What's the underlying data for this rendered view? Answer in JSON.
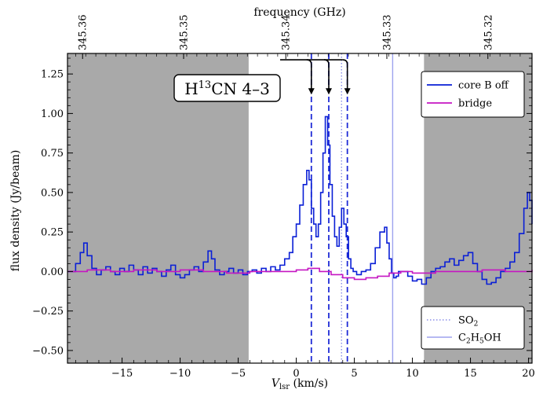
{
  "chart_data": {
    "type": "line",
    "xlabel": "V",
    "xlabel_sub": "lsr",
    "xlabel_unit": " (km/s)",
    "ylabel": "flux density (Jy/beam)",
    "top_axis_label": "frequency (GHz)",
    "xlim": [
      -19.7,
      20.3
    ],
    "ylim": [
      -0.58,
      1.38
    ],
    "x_ticks": [
      -15,
      -10,
      -5,
      0,
      5,
      10,
      15,
      20
    ],
    "x_tick_labels": [
      "−15",
      "−10",
      "−5",
      "0",
      "5",
      "10",
      "15",
      "20"
    ],
    "y_ticks": [
      -0.5,
      -0.25,
      0.0,
      0.25,
      0.5,
      0.75,
      1.0,
      1.25
    ],
    "y_tick_labels": [
      "−0.50",
      "−0.25",
      "0.00",
      "0.25",
      "0.50",
      "0.75",
      "1.00",
      "1.25"
    ],
    "top_ticks": [
      {
        "v": -18.4,
        "label": "345.36"
      },
      {
        "v": -9.7,
        "label": "345.35"
      },
      {
        "v": -0.9,
        "label": "345.34"
      },
      {
        "v": 7.8,
        "label": "345.33"
      },
      {
        "v": 16.5,
        "label": "345.32"
      }
    ],
    "shaded_regions": [
      [
        -19.7,
        -4.1
      ],
      [
        11.0,
        20.3
      ]
    ],
    "series": [
      {
        "name": "core B off",
        "color": "#0a1fd6",
        "x": [
          -19.7,
          -19.0,
          -18.6,
          -18.3,
          -18.0,
          -17.6,
          -17.2,
          -16.8,
          -16.4,
          -16.0,
          -15.6,
          -15.2,
          -14.8,
          -14.4,
          -14.0,
          -13.6,
          -13.2,
          -12.8,
          -12.4,
          -12.0,
          -11.6,
          -11.2,
          -10.8,
          -10.4,
          -10.0,
          -9.6,
          -9.2,
          -8.8,
          -8.4,
          -8.0,
          -7.6,
          -7.3,
          -7.0,
          -6.6,
          -6.2,
          -5.8,
          -5.4,
          -5.0,
          -4.6,
          -4.2,
          -3.8,
          -3.4,
          -3.0,
          -2.6,
          -2.2,
          -1.8,
          -1.4,
          -1.0,
          -0.6,
          -0.3,
          0.0,
          0.3,
          0.6,
          0.9,
          1.1,
          1.3,
          1.5,
          1.7,
          1.9,
          2.1,
          2.3,
          2.5,
          2.7,
          2.9,
          3.1,
          3.3,
          3.5,
          3.7,
          3.9,
          4.1,
          4.3,
          4.5,
          4.7,
          4.9,
          5.2,
          5.6,
          6.0,
          6.4,
          6.8,
          7.2,
          7.6,
          7.8,
          8.0,
          8.2,
          8.4,
          8.6,
          8.8,
          9.2,
          9.6,
          10.0,
          10.4,
          10.8,
          11.2,
          11.6,
          12.0,
          12.4,
          12.8,
          13.2,
          13.6,
          14.0,
          14.4,
          14.8,
          15.2,
          15.6,
          16.0,
          16.4,
          16.8,
          17.2,
          17.6,
          18.0,
          18.4,
          18.8,
          19.2,
          19.6,
          19.9,
          20.1,
          20.3
        ],
        "y": [
          0.0,
          0.05,
          0.12,
          0.18,
          0.1,
          0.02,
          -0.02,
          0.01,
          0.03,
          0.0,
          -0.02,
          0.02,
          0.0,
          0.04,
          0.01,
          -0.02,
          0.03,
          -0.01,
          0.02,
          0.0,
          -0.03,
          0.01,
          0.04,
          -0.02,
          -0.04,
          -0.02,
          0.01,
          0.03,
          0.0,
          0.06,
          0.13,
          0.08,
          0.01,
          -0.02,
          0.0,
          0.02,
          -0.01,
          0.01,
          -0.02,
          0.0,
          0.01,
          -0.01,
          0.02,
          0.0,
          0.03,
          0.01,
          0.04,
          0.08,
          0.12,
          0.22,
          0.3,
          0.42,
          0.55,
          0.64,
          0.58,
          0.4,
          0.3,
          0.22,
          0.3,
          0.5,
          0.75,
          0.98,
          0.8,
          0.55,
          0.35,
          0.22,
          0.16,
          0.28,
          0.4,
          0.3,
          0.22,
          0.08,
          0.02,
          0.0,
          -0.02,
          0.0,
          0.01,
          0.05,
          0.15,
          0.25,
          0.28,
          0.18,
          0.08,
          -0.01,
          -0.04,
          -0.03,
          0.0,
          0.0,
          -0.03,
          -0.06,
          -0.05,
          -0.08,
          -0.04,
          0.0,
          0.02,
          0.03,
          0.06,
          0.08,
          0.04,
          0.07,
          0.1,
          0.12,
          0.05,
          0.0,
          -0.05,
          -0.08,
          -0.07,
          -0.04,
          0.0,
          0.02,
          0.06,
          0.12,
          0.24,
          0.4,
          0.5,
          0.45,
          0.3
        ]
      },
      {
        "name": "bridge",
        "color": "#c516c2",
        "x": [
          -19.7,
          -18.0,
          -16.0,
          -14.0,
          -12.0,
          -10.0,
          -8.0,
          -6.0,
          -4.0,
          -2.0,
          0.0,
          1.0,
          2.0,
          3.0,
          4.0,
          5.0,
          6.0,
          7.0,
          8.0,
          9.0,
          10.0,
          12.0,
          14.0,
          16.0,
          18.0,
          20.3
        ],
        "y": [
          0.0,
          0.01,
          0.0,
          0.01,
          0.0,
          0.01,
          0.0,
          -0.01,
          0.0,
          0.0,
          0.01,
          0.02,
          0.0,
          -0.02,
          -0.04,
          -0.05,
          -0.04,
          -0.03,
          -0.01,
          0.0,
          -0.01,
          0.0,
          0.0,
          0.01,
          0.0,
          0.01
        ]
      }
    ],
    "vlines": [
      {
        "x": 1.3,
        "style": "dashed",
        "color": "#1f2bd6",
        "name": "H13CN 4-3"
      },
      {
        "x": 2.8,
        "style": "dashed",
        "color": "#1f2bd6",
        "name": "H13CN 4-3"
      },
      {
        "x": 4.4,
        "style": "dashed",
        "color": "#1f2bd6",
        "name": "H13CN 4-3"
      },
      {
        "x": 3.9,
        "style": "dotted",
        "color": "#8a8ee8",
        "name": "SO2"
      },
      {
        "x": 8.3,
        "style": "solid",
        "color": "#9da2ee",
        "name": "C2H5OH"
      }
    ],
    "annotation": {
      "text_pre": "H",
      "text_sup": "13",
      "text_post": "CN 4–3",
      "arrow_targets_x": [
        1.3,
        2.8,
        4.4
      ],
      "arrow_bar_y": 1.34,
      "arrow_tip_y": 1.12
    },
    "legend_top": {
      "placement": "top-right",
      "entries": [
        {
          "label": "core B off",
          "color": "#0a1fd6",
          "style": "solid"
        },
        {
          "label": "bridge",
          "color": "#c516c2",
          "style": "solid"
        }
      ]
    },
    "legend_bottom": {
      "placement": "bottom-right",
      "entries": [
        {
          "label_main": "SO",
          "label_sub": "2",
          "label_main2": "",
          "label_sub2": "",
          "label_tail": "",
          "color": "#8a8ee8",
          "style": "dotted"
        },
        {
          "label_main": "C",
          "label_sub": "2",
          "label_main2": "H",
          "label_sub2": "5",
          "label_tail": "OH",
          "color": "#9da2ee",
          "style": "solid"
        }
      ]
    }
  }
}
